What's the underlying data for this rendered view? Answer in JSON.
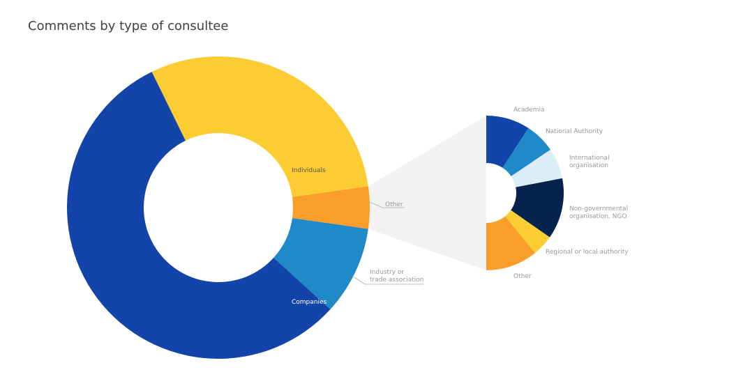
{
  "chart_data": {
    "type": "pie",
    "title": "Comments by type of consultee",
    "main": {
      "slices": [
        {
          "label": "Individuals",
          "value": 30.0,
          "color": "#fccc33",
          "label_color": "#555555"
        },
        {
          "label": "Other",
          "value": 4.5,
          "color": "#fa9e2a",
          "label_color": "#999999"
        },
        {
          "label": "Industry or trade association",
          "label_lines": [
            "Industry or",
            "trade association"
          ],
          "value": 9.5,
          "color": "#2089c7",
          "label_color": "#999999"
        },
        {
          "label": "Companies",
          "value": 56.0,
          "color": "#1344aa",
          "label_color": "#ffffff"
        }
      ]
    },
    "breakdown": {
      "parent": "Other",
      "connector_color": "#f2f2f2",
      "slices": [
        {
          "label": "Academia",
          "label_lines": [
            "Academia"
          ],
          "value": 16.5,
          "color": "#1344aa"
        },
        {
          "label": "National Authority",
          "label_lines": [
            "National Authority"
          ],
          "value": 11.5,
          "color": "#2089c7"
        },
        {
          "label": "International organisation",
          "label_lines": [
            "International",
            "organisation"
          ],
          "value": 11.5,
          "color": "#dbeef8"
        },
        {
          "label": "Non-governmental organisation, NGO",
          "label_lines": [
            "Non-governmental",
            "organisation, NGO"
          ],
          "value": 23.0,
          "color": "#05234d"
        },
        {
          "label": "Regional or local authority",
          "label_lines": [
            "Regional or local authority"
          ],
          "value": 8.0,
          "color": "#fccc33"
        },
        {
          "label": "Other",
          "label_lines": [
            "Other"
          ],
          "value": 19.5,
          "color": "#fa9e2a"
        }
      ]
    }
  }
}
